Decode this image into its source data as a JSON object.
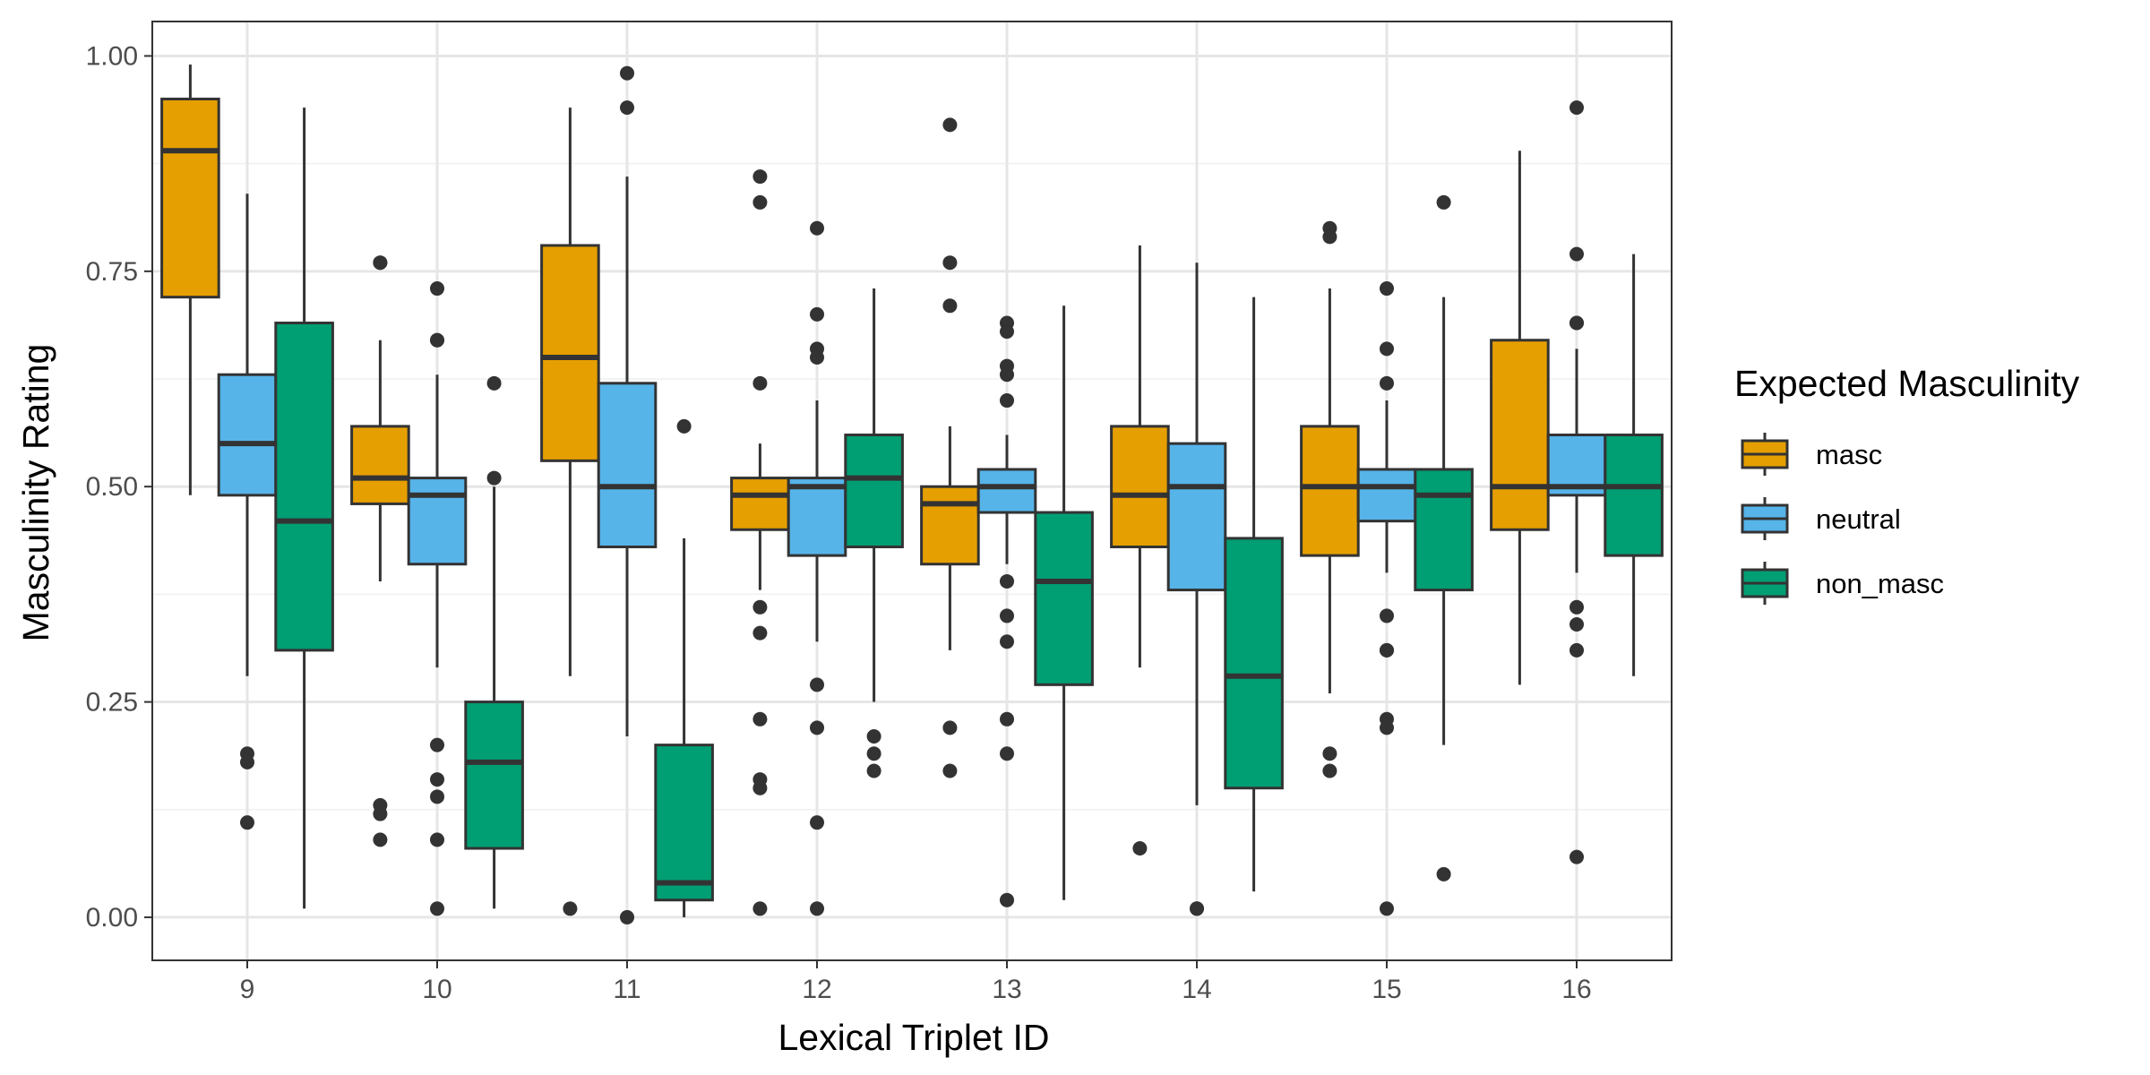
{
  "chart_data": {
    "type": "boxplot",
    "xlabel": "Lexical Triplet ID",
    "ylabel": "Masculinity Rating",
    "categories": [
      "9",
      "10",
      "11",
      "12",
      "13",
      "14",
      "15",
      "16"
    ],
    "ylim": [
      -0.05,
      1.04
    ],
    "yticks": [
      0.0,
      0.25,
      0.5,
      0.75,
      1.0
    ],
    "ytick_labels": [
      "0.00",
      "0.25",
      "0.50",
      "0.75",
      "1.00"
    ],
    "grid": true,
    "legend": {
      "title": "Expected Masculinity",
      "position": "right",
      "entries": [
        "masc",
        "neutral",
        "non_masc"
      ]
    },
    "colors": {
      "masc": "#E69F00",
      "neutral": "#56B4E9",
      "non_masc": "#009E73",
      "outline": "#333333"
    },
    "series": [
      {
        "name": "masc",
        "boxes": [
          {
            "whisker_low": 0.49,
            "q1": 0.72,
            "median": 0.89,
            "q3": 0.95,
            "whisker_high": 0.99,
            "outliers": []
          },
          {
            "whisker_low": 0.39,
            "q1": 0.48,
            "median": 0.51,
            "q3": 0.57,
            "whisker_high": 0.67,
            "outliers": [
              0.76,
              0.76,
              0.13,
              0.12,
              0.09
            ]
          },
          {
            "whisker_low": 0.28,
            "q1": 0.53,
            "median": 0.65,
            "q3": 0.78,
            "whisker_high": 0.94,
            "outliers": [
              0.01
            ]
          },
          {
            "whisker_low": 0.38,
            "q1": 0.45,
            "median": 0.49,
            "q3": 0.51,
            "whisker_high": 0.55,
            "outliers": [
              0.86,
              0.83,
              0.62,
              0.36,
              0.33,
              0.23,
              0.16,
              0.15,
              0.01
            ]
          },
          {
            "whisker_low": 0.31,
            "q1": 0.41,
            "median": 0.48,
            "q3": 0.5,
            "whisker_high": 0.57,
            "outliers": [
              0.92,
              0.76,
              0.71,
              0.22,
              0.17
            ]
          },
          {
            "whisker_low": 0.29,
            "q1": 0.43,
            "median": 0.49,
            "q3": 0.57,
            "whisker_high": 0.78,
            "outliers": [
              0.08
            ]
          },
          {
            "whisker_low": 0.26,
            "q1": 0.42,
            "median": 0.5,
            "q3": 0.57,
            "whisker_high": 0.73,
            "outliers": [
              0.8,
              0.79,
              0.19,
              0.17
            ]
          },
          {
            "whisker_low": 0.27,
            "q1": 0.45,
            "median": 0.5,
            "q3": 0.67,
            "whisker_high": 0.89,
            "outliers": []
          }
        ]
      },
      {
        "name": "neutral",
        "boxes": [
          {
            "whisker_low": 0.28,
            "q1": 0.49,
            "median": 0.55,
            "q3": 0.63,
            "whisker_high": 0.84,
            "outliers": [
              0.19,
              0.18,
              0.11
            ]
          },
          {
            "whisker_low": 0.29,
            "q1": 0.41,
            "median": 0.49,
            "q3": 0.51,
            "whisker_high": 0.63,
            "outliers": [
              0.73,
              0.67,
              0.67,
              0.2,
              0.16,
              0.14,
              0.09,
              0.01
            ]
          },
          {
            "whisker_low": 0.21,
            "q1": 0.43,
            "median": 0.5,
            "q3": 0.62,
            "whisker_high": 0.86,
            "outliers": [
              0.98,
              0.94,
              0.0
            ]
          },
          {
            "whisker_low": 0.32,
            "q1": 0.42,
            "median": 0.5,
            "q3": 0.51,
            "whisker_high": 0.6,
            "outliers": [
              0.8,
              0.7,
              0.66,
              0.65,
              0.27,
              0.22,
              0.11,
              0.01
            ]
          },
          {
            "whisker_low": 0.41,
            "q1": 0.47,
            "median": 0.5,
            "q3": 0.52,
            "whisker_high": 0.56,
            "outliers": [
              0.69,
              0.68,
              0.64,
              0.63,
              0.6,
              0.39,
              0.35,
              0.32,
              0.23,
              0.19,
              0.02
            ]
          },
          {
            "whisker_low": 0.13,
            "q1": 0.38,
            "median": 0.5,
            "q3": 0.55,
            "whisker_high": 0.76,
            "outliers": [
              0.01,
              0.01
            ]
          },
          {
            "whisker_low": 0.4,
            "q1": 0.46,
            "median": 0.5,
            "q3": 0.52,
            "whisker_high": 0.6,
            "outliers": [
              0.73,
              0.66,
              0.62,
              0.35,
              0.31,
              0.31,
              0.23,
              0.22,
              0.01
            ]
          },
          {
            "whisker_low": 0.4,
            "q1": 0.49,
            "median": 0.5,
            "q3": 0.56,
            "whisker_high": 0.66,
            "outliers": [
              0.94,
              0.77,
              0.69,
              0.69,
              0.36,
              0.34,
              0.31,
              0.07
            ]
          }
        ]
      },
      {
        "name": "non_masc",
        "boxes": [
          {
            "whisker_low": 0.01,
            "q1": 0.31,
            "median": 0.46,
            "q3": 0.69,
            "whisker_high": 0.94,
            "outliers": []
          },
          {
            "whisker_low": 0.01,
            "q1": 0.08,
            "median": 0.18,
            "q3": 0.25,
            "whisker_high": 0.5,
            "outliers": [
              0.62,
              0.51
            ]
          },
          {
            "whisker_low": 0.0,
            "q1": 0.02,
            "median": 0.04,
            "q3": 0.2,
            "whisker_high": 0.44,
            "outliers": [
              0.57
            ]
          },
          {
            "whisker_low": 0.25,
            "q1": 0.43,
            "median": 0.51,
            "q3": 0.56,
            "whisker_high": 0.73,
            "outliers": [
              0.21,
              0.19,
              0.17
            ]
          },
          {
            "whisker_low": 0.02,
            "q1": 0.27,
            "median": 0.39,
            "q3": 0.47,
            "whisker_high": 0.71,
            "outliers": []
          },
          {
            "whisker_low": 0.03,
            "q1": 0.15,
            "median": 0.28,
            "q3": 0.44,
            "whisker_high": 0.72,
            "outliers": []
          },
          {
            "whisker_low": 0.2,
            "q1": 0.38,
            "median": 0.49,
            "q3": 0.52,
            "whisker_high": 0.72,
            "outliers": [
              0.83,
              0.05
            ]
          },
          {
            "whisker_low": 0.28,
            "q1": 0.42,
            "median": 0.5,
            "q3": 0.56,
            "whisker_high": 0.77,
            "outliers": []
          }
        ]
      }
    ]
  }
}
